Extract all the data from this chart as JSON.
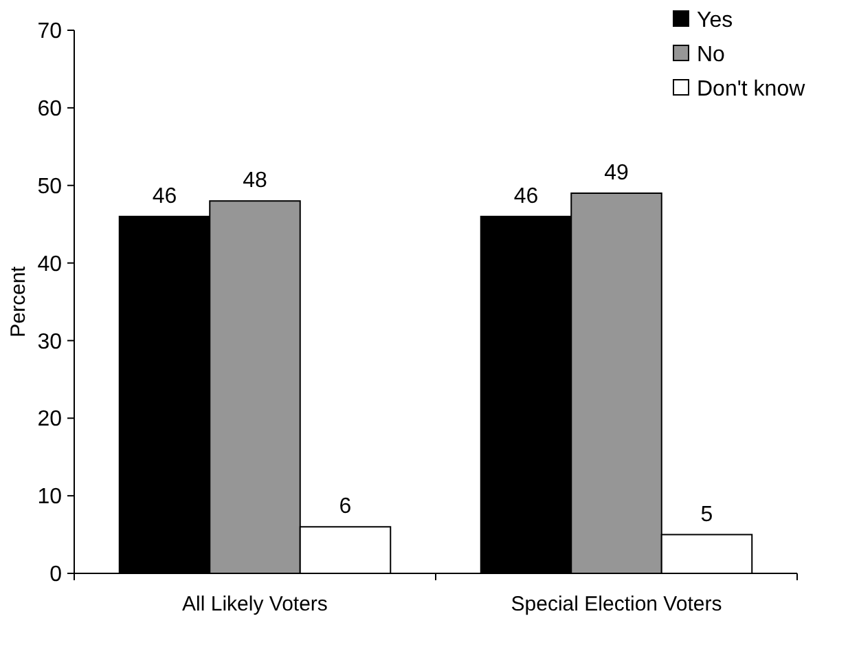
{
  "chart_data": {
    "type": "bar",
    "ylabel": "Percent",
    "categories": [
      "All Likely Voters",
      "Special Election Voters"
    ],
    "series": [
      {
        "name": "Yes",
        "color": "#000000",
        "values": [
          46,
          46
        ]
      },
      {
        "name": "No",
        "color": "#969696",
        "values": [
          48,
          49
        ]
      },
      {
        "name": "Don't know",
        "color": "#ffffff",
        "values": [
          6,
          5
        ]
      }
    ],
    "ylim": [
      0,
      70
    ],
    "yticks": [
      0,
      10,
      20,
      30,
      40,
      50,
      60,
      70
    ],
    "data_labels": true,
    "legend": "top right",
    "grid": false
  }
}
